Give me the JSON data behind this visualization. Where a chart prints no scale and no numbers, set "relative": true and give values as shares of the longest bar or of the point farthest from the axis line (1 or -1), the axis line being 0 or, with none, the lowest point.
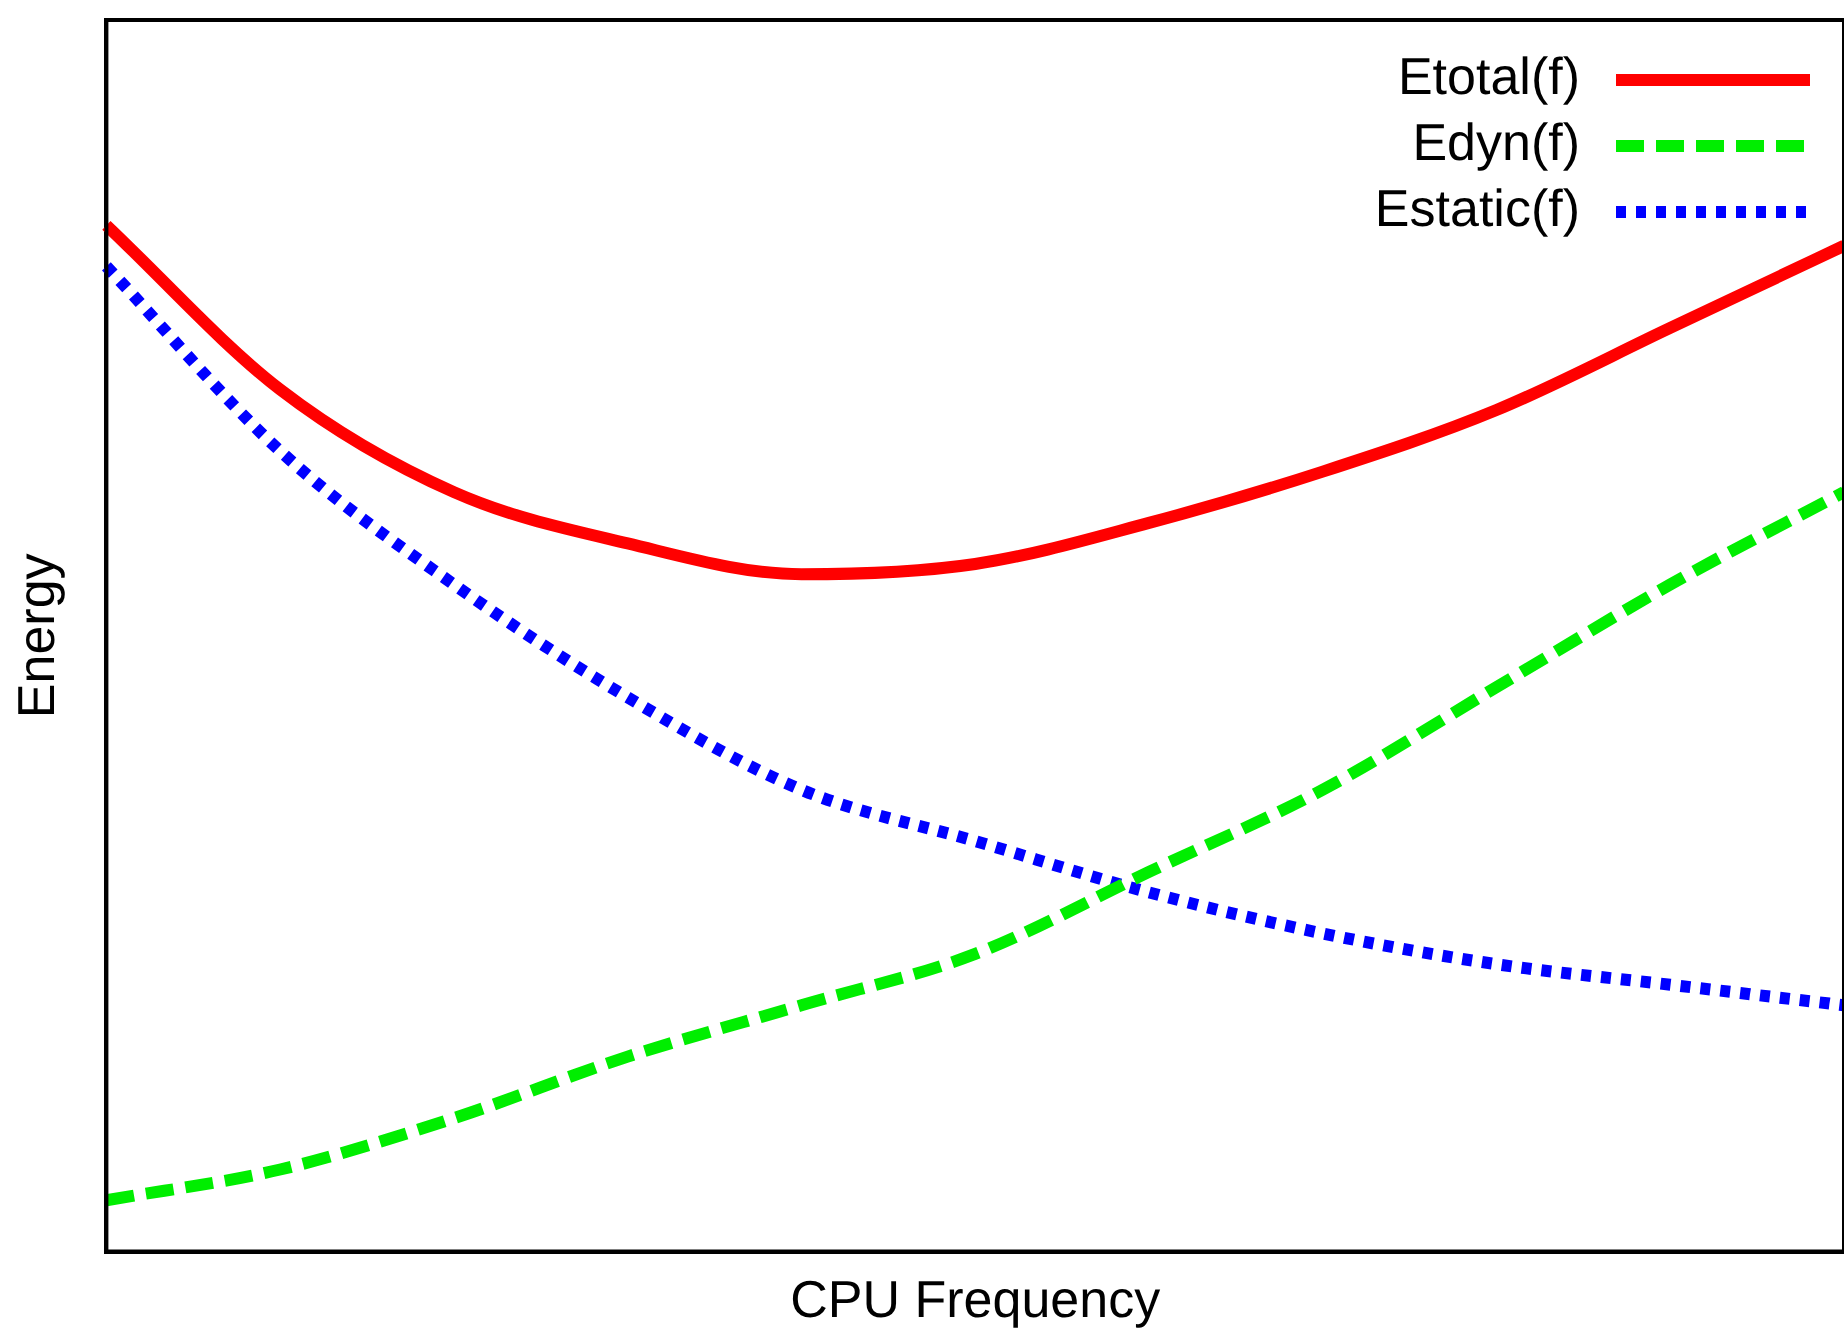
{
  "chart_data": {
    "type": "line",
    "xlabel": "CPU Frequency",
    "ylabel": "Energy",
    "relative": true,
    "legend": "top right",
    "grid": false,
    "marker": "none",
    "categories": [
      null,
      null,
      null,
      null,
      null,
      null,
      null,
      null,
      null,
      null,
      null
    ],
    "series": [
      {
        "name": "Etotal(f)",
        "color": "#ff0000",
        "line_style": "solid",
        "values": [
          1.0,
          0.84,
          0.74,
          0.69,
          0.66,
          0.67,
          0.71,
          0.76,
          0.82,
          0.9,
          0.98
        ]
      },
      {
        "name": "Edyn(f)",
        "color": "#00ee00",
        "line_style": "dashed",
        "values": [
          0.05,
          0.08,
          0.13,
          0.19,
          0.24,
          0.29,
          0.37,
          0.45,
          0.55,
          0.65,
          0.74
        ]
      },
      {
        "name": "Estatic(f)",
        "color": "#0000ff",
        "line_style": "dotted",
        "values": [
          0.96,
          0.78,
          0.65,
          0.54,
          0.45,
          0.4,
          0.35,
          0.31,
          0.28,
          0.26,
          0.24
        ]
      }
    ]
  }
}
